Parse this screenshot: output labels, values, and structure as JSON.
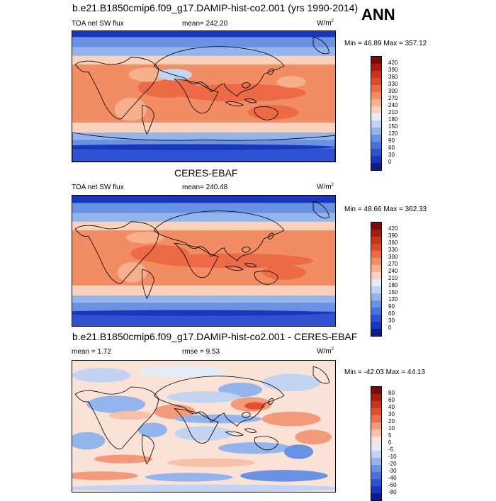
{
  "season": "ANN",
  "panels": [
    {
      "title": "b.e21.B1850cmip6.f09_g17.DAMIP-hist-co2.001 (yrs 1990-2014)",
      "left": "TOA net SW flux",
      "center": "mean= 242.20",
      "units": "W/m",
      "units_sup": "2",
      "minmax": "Min =  46.89 Max = 357.12",
      "colorbar": {
        "labels": [
          "420",
          "390",
          "360",
          "330",
          "300",
          "270",
          "240",
          "210",
          "180",
          "150",
          "120",
          "90",
          "60",
          "30",
          "0"
        ],
        "colors": [
          "#7a0a0a",
          "#a81c10",
          "#c8341c",
          "#dc4a2c",
          "#ec6a44",
          "#f28c62",
          "#f6b08c",
          "#fad2bc",
          "#e4ecf8",
          "#c2d4f2",
          "#94b4ec",
          "#6a92e4",
          "#4a72dc",
          "#2e52d0",
          "#1a36bc",
          "#0c1c8a"
        ]
      }
    },
    {
      "title": "CERES-EBAF",
      "left": "TOA net SW flux",
      "center": "mean= 240.48",
      "units": "W/m",
      "units_sup": "2",
      "minmax": "Min =  48.66 Max = 362.33",
      "colorbar": {
        "labels": [
          "420",
          "390",
          "360",
          "330",
          "300",
          "270",
          "240",
          "210",
          "180",
          "150",
          "120",
          "90",
          "60",
          "30",
          "0"
        ],
        "colors": [
          "#7a0a0a",
          "#a81c10",
          "#c8341c",
          "#dc4a2c",
          "#ec6a44",
          "#f28c62",
          "#f6b08c",
          "#fad2bc",
          "#e4ecf8",
          "#c2d4f2",
          "#94b4ec",
          "#6a92e4",
          "#4a72dc",
          "#2e52d0",
          "#1a36bc",
          "#0c1c8a"
        ]
      }
    },
    {
      "title": "b.e21.B1850cmip6.f09_g17.DAMIP-hist-co2.001 - CERES-EBAF",
      "left": "mean =   1.72",
      "center": "rmse =   9.53",
      "units": "W/m",
      "units_sup": "2",
      "minmax": "Min = -42.03 Max =  44.13",
      "colorbar": {
        "labels": [
          "80",
          "60",
          "40",
          "30",
          "20",
          "10",
          "5",
          "0",
          "-5",
          "-10",
          "-20",
          "-30",
          "-40",
          "-60",
          "-80"
        ],
        "colors": [
          "#7a0a0a",
          "#a81c10",
          "#c8341c",
          "#e0502e",
          "#ec7050",
          "#f39a7a",
          "#f8c0a8",
          "#fbe2d6",
          "#e4ecf8",
          "#c2d4f2",
          "#94b4ec",
          "#6a92e4",
          "#4a72dc",
          "#2e52d0",
          "#1a36bc",
          "#0c1c8a"
        ]
      }
    }
  ]
}
